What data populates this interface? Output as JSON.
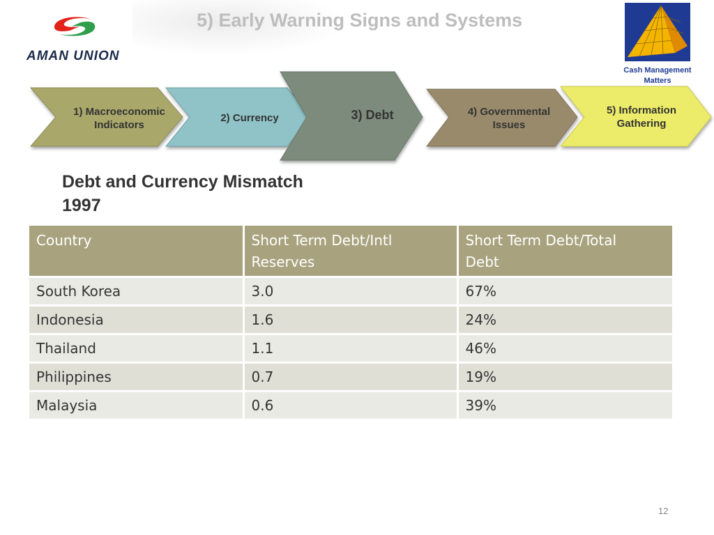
{
  "slide": {
    "title": "5)   Early Warning Signs and Systems",
    "page_number": "12"
  },
  "logo": {
    "name": "AMAN UNION",
    "colors": [
      "#e2231a",
      "#2e9e4a",
      "#1a2b4a"
    ]
  },
  "corner_image": {
    "icon": "pyramid-icon",
    "caption_line1": "Cash Management",
    "caption_line2": "Matters"
  },
  "process_steps": [
    {
      "line1": "1) Macroeconomic",
      "line2": "Indicators",
      "color": "#a9a86b"
    },
    {
      "line1": "2) Currency",
      "line2": "",
      "color": "#8fc3c8"
    },
    {
      "line1": "3) Debt",
      "line2": "",
      "color": "#7c8b7b"
    },
    {
      "line1": "4) Governmental",
      "line2": "Issues",
      "color": "#9a8a6c"
    },
    {
      "line1": "5) Information",
      "line2": "Gathering",
      "color": "#ecec6a"
    }
  ],
  "section": {
    "title_line1": "Debt and Currency Mismatch",
    "title_line2": "1997"
  },
  "table": {
    "headers": [
      {
        "line1": "Country",
        "line2": ""
      },
      {
        "line1": "Short Term Debt/Intl",
        "line2": "Reserves"
      },
      {
        "line1": "Short Term Debt/Total",
        "line2": "Debt"
      }
    ],
    "rows": [
      [
        "South Korea",
        "3.0",
        "67%"
      ],
      [
        "Indonesia",
        "1.6",
        "24%"
      ],
      [
        "Thailand",
        "1.1",
        "46%"
      ],
      [
        "Philippines",
        "0.7",
        "19%"
      ],
      [
        "Malaysia",
        "0.6",
        "39%"
      ]
    ],
    "colors": {
      "header": "#a8a37e",
      "row": "#eaeae4",
      "row_alt": "#e0dfd6"
    }
  }
}
